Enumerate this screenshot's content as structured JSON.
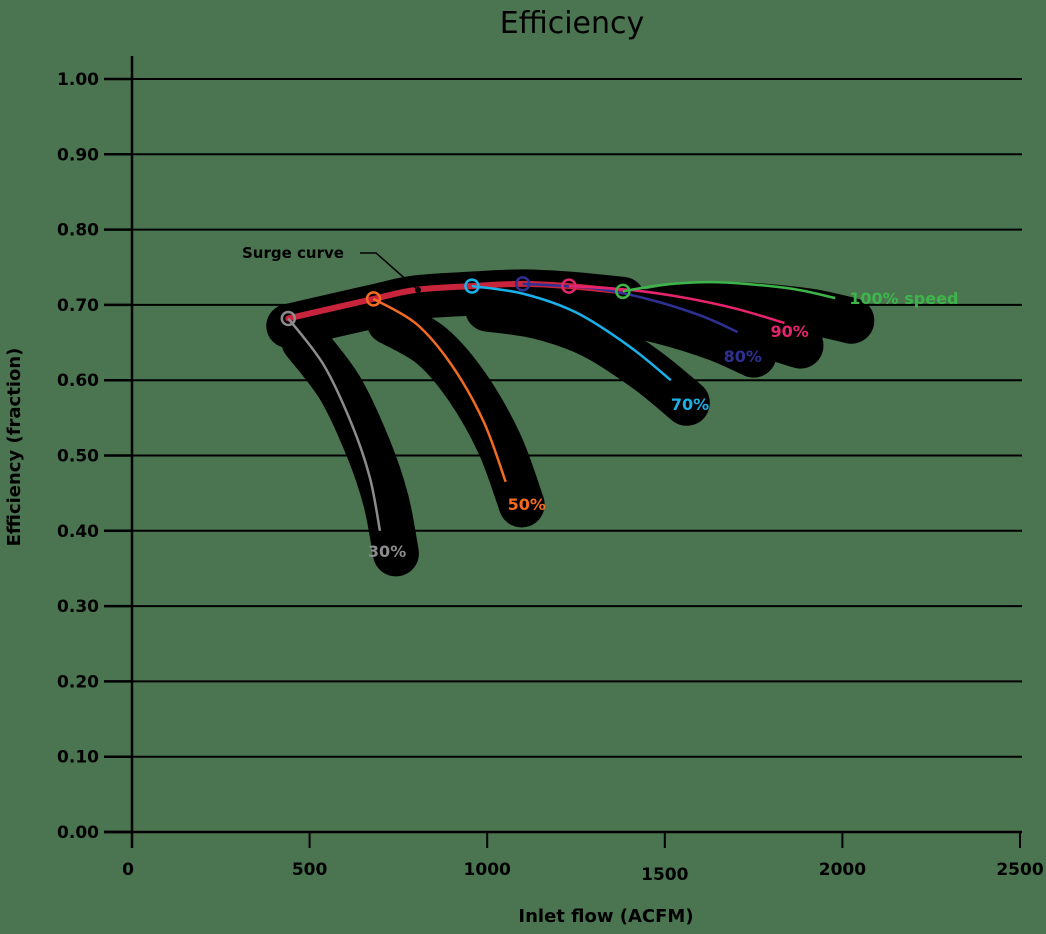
{
  "chart_data": {
    "type": "line",
    "title": "Efficiency",
    "xlabel": "Inlet flow (ACFM)",
    "ylabel": "Efficiency (fraction)",
    "xlim": [
      0,
      2500
    ],
    "ylim": [
      0.0,
      1.0
    ],
    "x_ticks": [
      "0",
      "500",
      "1000",
      "1500",
      "2000",
      "2500"
    ],
    "y_ticks": [
      "0.00",
      "0.10",
      "0.20",
      "0.30",
      "0.40",
      "0.50",
      "0.60",
      "0.70",
      "0.80",
      "0.90",
      "1.00"
    ],
    "grid": "horizontal",
    "legend": "inline labels at curve ends",
    "annotations": [
      {
        "text": "Surge curve",
        "points_to": {
          "x": 800,
          "y": 0.722
        }
      }
    ],
    "surge_curve": {
      "name": "Surge curve",
      "color": "#c8243c",
      "x": [
        440,
        680,
        800,
        957,
        1100,
        1230,
        1382
      ],
      "y": [
        0.682,
        0.708,
        0.72,
        0.725,
        0.728,
        0.725,
        0.718
      ]
    },
    "series": [
      {
        "name": "30%",
        "label": "30%",
        "color": "#8c8c8c",
        "x": [
          440,
          540,
          620,
          670,
          698
        ],
        "y": [
          0.682,
          0.62,
          0.54,
          0.47,
          0.4
        ]
      },
      {
        "name": "50%",
        "label": "50%",
        "color": "#f26b21",
        "x": [
          680,
          800,
          900,
          990,
          1052
        ],
        "y": [
          0.708,
          0.675,
          0.62,
          0.545,
          0.465
        ]
      },
      {
        "name": "70%",
        "label": "70%",
        "color": "#1ab0e8",
        "x": [
          957,
          1100,
          1250,
          1400,
          1517
        ],
        "y": [
          0.725,
          0.715,
          0.69,
          0.645,
          0.6
        ]
      },
      {
        "name": "80%",
        "label": "80%",
        "color": "#2e3192",
        "x": [
          1100,
          1300,
          1450,
          1600,
          1705
        ],
        "y": [
          0.728,
          0.722,
          0.708,
          0.686,
          0.664
        ]
      },
      {
        "name": "90%",
        "label": "90%",
        "color": "#e6246e",
        "x": [
          1230,
          1400,
          1550,
          1700,
          1837
        ],
        "y": [
          0.725,
          0.72,
          0.71,
          0.695,
          0.676
        ]
      },
      {
        "name": "100%",
        "label": "100% speed",
        "color": "#3db54a",
        "x": [
          1382,
          1500,
          1650,
          1850,
          1980
        ],
        "y": [
          0.718,
          0.727,
          0.73,
          0.722,
          0.709
        ]
      }
    ]
  }
}
